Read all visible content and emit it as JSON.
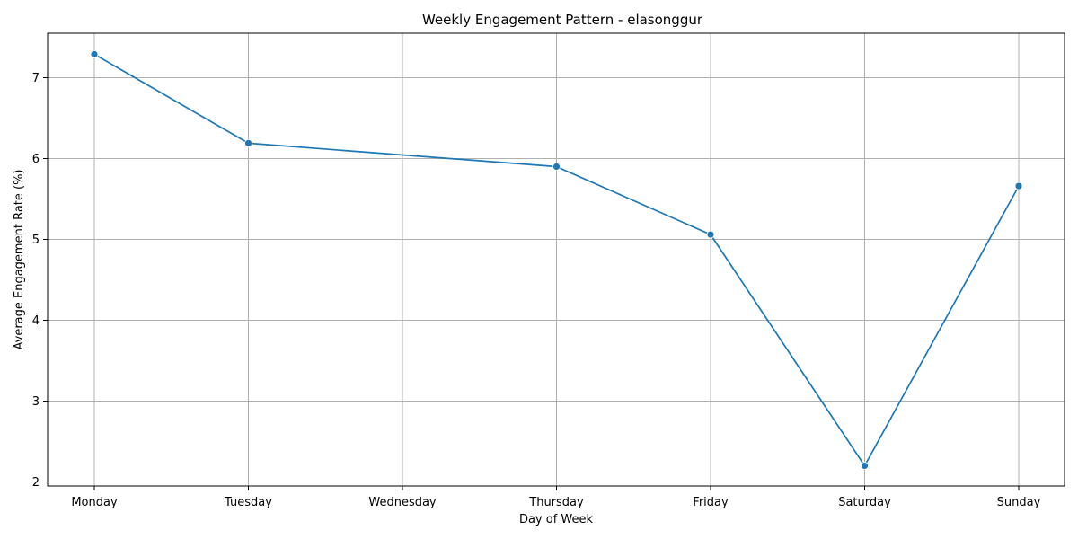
{
  "chart_data": {
    "type": "line",
    "title": "Weekly Engagement Pattern - elasonggur",
    "xlabel": "Day of Week",
    "ylabel": "Average Engagement Rate (%)",
    "categories": [
      "Monday",
      "Tuesday",
      "Wednesday",
      "Thursday",
      "Friday",
      "Saturday",
      "Sunday"
    ],
    "series": [
      {
        "values": [
          7.29,
          6.19,
          null,
          5.9,
          5.06,
          2.2,
          5.66
        ],
        "color": "#1f77b4",
        "marker": "circle"
      }
    ],
    "yticks": [
      2,
      3,
      4,
      5,
      6,
      7
    ],
    "ylim": [
      1.95,
      7.55
    ],
    "grid": true,
    "legend": "none"
  }
}
